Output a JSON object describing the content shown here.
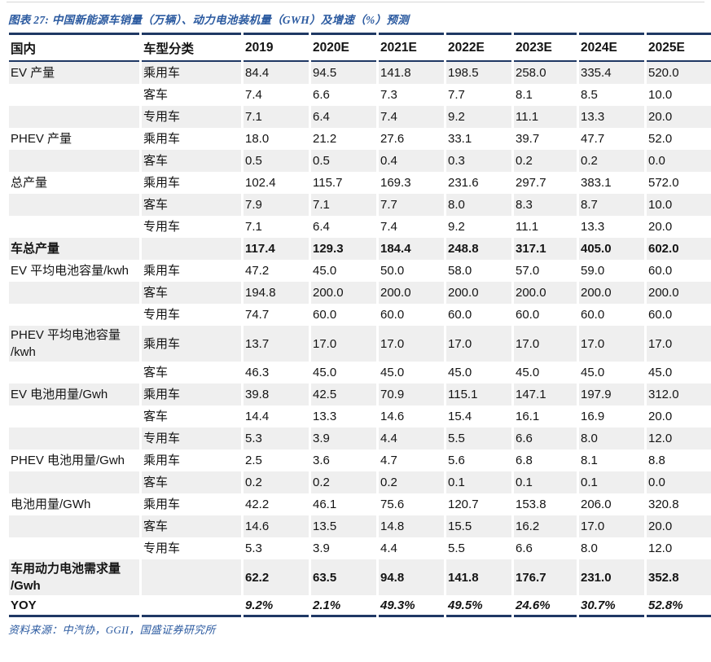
{
  "figure": {
    "title": "图表 27:  中国新能源车销量（万辆）、动力电池装机量（GWH）及增速（%）预测",
    "source_note": "资料来源：中汽协，GGII，国盛证券研究所"
  },
  "colors": {
    "border_navy": "#1f3864",
    "accent_blue": "#2b5aa0",
    "stripe_gray": "#efefef"
  },
  "chart_data": {
    "type": "table",
    "title": "中国新能源车销量（万辆）、动力电池装机量（GWH）及增速（%）预测",
    "columns": [
      "国内",
      "车型分类",
      "2019",
      "2020E",
      "2021E",
      "2022E",
      "2023E",
      "2024E",
      "2025E"
    ],
    "rows": [
      {
        "group": "EV 产量",
        "type": "乘用车",
        "values": [
          "84.4",
          "94.5",
          "141.8",
          "198.5",
          "258.0",
          "335.4",
          "520.0"
        ],
        "bold": false,
        "italic_values": false
      },
      {
        "group": "",
        "type": "客车",
        "values": [
          "7.4",
          "6.6",
          "7.3",
          "7.7",
          "8.1",
          "8.5",
          "10.0"
        ],
        "bold": false,
        "italic_values": false
      },
      {
        "group": "",
        "type": "专用车",
        "values": [
          "7.1",
          "6.4",
          "7.4",
          "9.2",
          "11.1",
          "13.3",
          "20.0"
        ],
        "bold": false,
        "italic_values": false
      },
      {
        "group": "PHEV 产量",
        "type": "乘用车",
        "values": [
          "18.0",
          "21.2",
          "27.6",
          "33.1",
          "39.7",
          "47.7",
          "52.0"
        ],
        "bold": false,
        "italic_values": false
      },
      {
        "group": "",
        "type": "客车",
        "values": [
          "0.5",
          "0.5",
          "0.4",
          "0.3",
          "0.2",
          "0.2",
          "0.0"
        ],
        "bold": false,
        "italic_values": false
      },
      {
        "group": "总产量",
        "type": "乘用车",
        "values": [
          "102.4",
          "115.7",
          "169.3",
          "231.6",
          "297.7",
          "383.1",
          "572.0"
        ],
        "bold": false,
        "italic_values": false
      },
      {
        "group": "",
        "type": "客车",
        "values": [
          "7.9",
          "7.1",
          "7.7",
          "8.0",
          "8.3",
          "8.7",
          "10.0"
        ],
        "bold": false,
        "italic_values": false
      },
      {
        "group": "",
        "type": "专用车",
        "values": [
          "7.1",
          "6.4",
          "7.4",
          "9.2",
          "11.1",
          "13.3",
          "20.0"
        ],
        "bold": false,
        "italic_values": false
      },
      {
        "group": "车总产量",
        "type": "",
        "values": [
          "117.4",
          "129.3",
          "184.4",
          "248.8",
          "317.1",
          "405.0",
          "602.0"
        ],
        "bold": true,
        "italic_values": false
      },
      {
        "group": "EV 平均电池容量/kwh",
        "type": "乘用车",
        "values": [
          "47.2",
          "45.0",
          "50.0",
          "58.0",
          "57.0",
          "59.0",
          "60.0"
        ],
        "bold": false,
        "italic_values": false
      },
      {
        "group": "",
        "type": "客车",
        "values": [
          "194.8",
          "200.0",
          "200.0",
          "200.0",
          "200.0",
          "200.0",
          "200.0"
        ],
        "bold": false,
        "italic_values": false
      },
      {
        "group": "",
        "type": "专用车",
        "values": [
          "74.7",
          "60.0",
          "60.0",
          "60.0",
          "60.0",
          "60.0",
          "60.0"
        ],
        "bold": false,
        "italic_values": false
      },
      {
        "group": "PHEV 平均电池容量\n/kwh",
        "type": "乘用车",
        "values": [
          "13.7",
          "17.0",
          "17.0",
          "17.0",
          "17.0",
          "17.0",
          "17.0"
        ],
        "bold": false,
        "italic_values": false
      },
      {
        "group": "",
        "type": "客车",
        "values": [
          "46.3",
          "45.0",
          "45.0",
          "45.0",
          "45.0",
          "45.0",
          "45.0"
        ],
        "bold": false,
        "italic_values": false
      },
      {
        "group": "EV 电池用量/Gwh",
        "type": "乘用车",
        "values": [
          "39.8",
          "42.5",
          "70.9",
          "115.1",
          "147.1",
          "197.9",
          "312.0"
        ],
        "bold": false,
        "italic_values": false
      },
      {
        "group": "",
        "type": "客车",
        "values": [
          "14.4",
          "13.3",
          "14.6",
          "15.4",
          "16.1",
          "16.9",
          "20.0"
        ],
        "bold": false,
        "italic_values": false
      },
      {
        "group": "",
        "type": "专用车",
        "values": [
          "5.3",
          "3.9",
          "4.4",
          "5.5",
          "6.6",
          "8.0",
          "12.0"
        ],
        "bold": false,
        "italic_values": false
      },
      {
        "group": "PHEV 电池用量/Gwh",
        "type": "乘用车",
        "values": [
          "2.5",
          "3.6",
          "4.7",
          "5.6",
          "6.8",
          "8.1",
          "8.8"
        ],
        "bold": false,
        "italic_values": false
      },
      {
        "group": "",
        "type": "客车",
        "values": [
          "0.2",
          "0.2",
          "0.2",
          "0.1",
          "0.1",
          "0.1",
          "0.0"
        ],
        "bold": false,
        "italic_values": false
      },
      {
        "group": "电池用量/GWh",
        "type": "乘用车",
        "values": [
          "42.2",
          "46.1",
          "75.6",
          "120.7",
          "153.8",
          "206.0",
          "320.8"
        ],
        "bold": false,
        "italic_values": false
      },
      {
        "group": "",
        "type": "客车",
        "values": [
          "14.6",
          "13.5",
          "14.8",
          "15.5",
          "16.2",
          "17.0",
          "20.0"
        ],
        "bold": false,
        "italic_values": false
      },
      {
        "group": "",
        "type": "专用车",
        "values": [
          "5.3",
          "3.9",
          "4.4",
          "5.5",
          "6.6",
          "8.0",
          "12.0"
        ],
        "bold": false,
        "italic_values": false
      },
      {
        "group": "车用动力电池需求量\n/Gwh",
        "type": "",
        "values": [
          "62.2",
          "63.5",
          "94.8",
          "141.8",
          "176.7",
          "231.0",
          "352.8"
        ],
        "bold": true,
        "italic_values": false
      },
      {
        "group": "YOY",
        "type": "",
        "values": [
          "9.2%",
          "2.1%",
          "49.3%",
          "49.5%",
          "24.6%",
          "30.7%",
          "52.8%"
        ],
        "bold": true,
        "italic_values": true
      }
    ]
  }
}
